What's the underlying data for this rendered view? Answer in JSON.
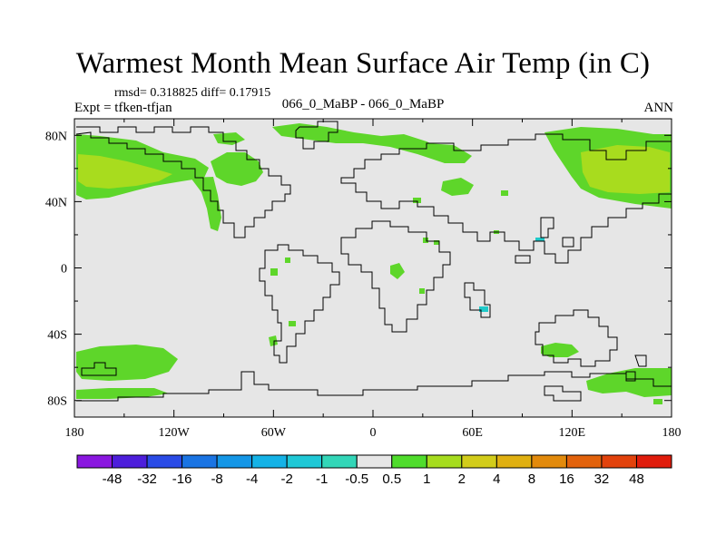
{
  "header": {
    "title": "Warmest Month Mean Surface Air Temp (in C)",
    "stats": "rmsd= 0.318825 diff= 0.17915",
    "experiment": "Expt = tfken-tfjan",
    "runs": "066_0_MaBP - 066_0_MaBP",
    "season": "ANN"
  },
  "map": {
    "projection": "cylindrical-equidistant",
    "lon_range": [
      -180,
      180
    ],
    "lat_range": [
      -90,
      90
    ],
    "x_ticks": [
      "180",
      "120W",
      "60W",
      "0",
      "60E",
      "120E",
      "180"
    ],
    "y_ticks": [
      "80N",
      "40N",
      "0",
      "40S",
      "80S"
    ],
    "background_color": "#e6e6e6",
    "coastline_color": "#000000"
  },
  "colorbar": {
    "labels": [
      "-48",
      "-32",
      "-16",
      "-8",
      "-4",
      "-2",
      "-1",
      "-0.5",
      "0.5",
      "1",
      "2",
      "4",
      "8",
      "16",
      "32",
      "48"
    ],
    "colors": [
      "#8a17e0",
      "#4d1edb",
      "#2a4be6",
      "#1a74e3",
      "#1496e6",
      "#14b2e6",
      "#1fc8d6",
      "#33d6b8",
      "#e6e6e6",
      "#4fdc2c",
      "#a6dc1e",
      "#d2cc1a",
      "#e0b011",
      "#e28a0c",
      "#e2620c",
      "#e2420c",
      "#e01c0c"
    ]
  },
  "anomaly_colors": {
    "positive_low": "#5ed62a",
    "positive_mid": "#a8dc1e",
    "negative_low": "#20c9c9"
  }
}
